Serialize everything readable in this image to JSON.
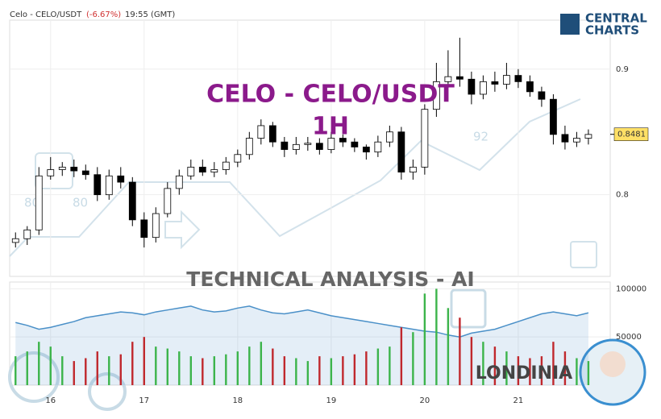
{
  "header": {
    "symbol": "Celo - CELO/USDT",
    "change": "(-6.67%)",
    "time": "19:55 (GMT)"
  },
  "logo": {
    "line1": "CENTRAL",
    "line2": "CHARTS"
  },
  "watermarks": {
    "title": "CELO - CELO/USDT",
    "timeframe": "1H",
    "subtitle": "TECHNICAL  ANALYSIS - AI",
    "brand": "LONDINIA",
    "numbers": [
      "80",
      "80",
      "92"
    ]
  },
  "chart_data": [
    {
      "type": "candlestick",
      "x": [
        -9,
        -6,
        -3,
        0,
        3,
        6,
        9,
        12,
        15,
        18,
        21,
        24,
        27,
        30,
        33,
        36,
        39,
        42,
        45,
        48,
        51,
        54,
        57,
        60,
        63,
        66,
        69,
        72,
        75,
        78,
        81,
        84,
        87,
        90,
        93,
        96,
        99,
        102,
        105,
        108,
        111,
        114,
        117,
        120,
        123,
        126,
        129,
        132,
        135,
        138
      ],
      "open": [
        0.762,
        0.765,
        0.772,
        0.815,
        0.82,
        0.822,
        0.819,
        0.816,
        0.8,
        0.815,
        0.81,
        0.78,
        0.766,
        0.785,
        0.805,
        0.815,
        0.822,
        0.818,
        0.82,
        0.826,
        0.832,
        0.845,
        0.855,
        0.842,
        0.836,
        0.84,
        0.841,
        0.836,
        0.845,
        0.842,
        0.838,
        0.834,
        0.842,
        0.85,
        0.818,
        0.822,
        0.868,
        0.89,
        0.894,
        0.892,
        0.88,
        0.89,
        0.888,
        0.895,
        0.89,
        0.882,
        0.876,
        0.848,
        0.842,
        0.845
      ],
      "high": [
        0.77,
        0.775,
        0.822,
        0.83,
        0.826,
        0.828,
        0.824,
        0.822,
        0.82,
        0.822,
        0.814,
        0.786,
        0.79,
        0.81,
        0.82,
        0.828,
        0.828,
        0.826,
        0.83,
        0.836,
        0.85,
        0.86,
        0.858,
        0.846,
        0.846,
        0.846,
        0.845,
        0.85,
        0.848,
        0.845,
        0.84,
        0.847,
        0.855,
        0.854,
        0.828,
        0.872,
        0.905,
        0.915,
        0.925,
        0.898,
        0.895,
        0.898,
        0.905,
        0.9,
        0.895,
        0.886,
        0.88,
        0.855,
        0.85,
        0.852
      ],
      "low": [
        0.758,
        0.76,
        0.768,
        0.812,
        0.815,
        0.814,
        0.812,
        0.795,
        0.796,
        0.805,
        0.775,
        0.758,
        0.762,
        0.782,
        0.8,
        0.812,
        0.815,
        0.814,
        0.816,
        0.822,
        0.828,
        0.84,
        0.838,
        0.83,
        0.832,
        0.835,
        0.832,
        0.833,
        0.838,
        0.834,
        0.828,
        0.83,
        0.838,
        0.812,
        0.812,
        0.816,
        0.862,
        0.885,
        0.886,
        0.872,
        0.876,
        0.882,
        0.884,
        0.885,
        0.878,
        0.87,
        0.84,
        0.836,
        0.838,
        0.84
      ],
      "close": [
        0.765,
        0.772,
        0.815,
        0.82,
        0.822,
        0.819,
        0.816,
        0.8,
        0.815,
        0.81,
        0.78,
        0.766,
        0.785,
        0.805,
        0.815,
        0.822,
        0.818,
        0.82,
        0.826,
        0.832,
        0.845,
        0.855,
        0.842,
        0.836,
        0.84,
        0.841,
        0.836,
        0.845,
        0.842,
        0.838,
        0.834,
        0.842,
        0.85,
        0.818,
        0.822,
        0.868,
        0.89,
        0.894,
        0.892,
        0.88,
        0.89,
        0.888,
        0.895,
        0.89,
        0.882,
        0.876,
        0.848,
        0.842,
        0.845,
        0.848
      ],
      "up_color": "#ffffff",
      "down_color": "#000000",
      "xlim": [
        -10.5,
        143.6
      ],
      "xticks": [
        {
          "value": 0,
          "label": "16"
        },
        {
          "value": 24,
          "label": "17"
        },
        {
          "value": 48,
          "label": "18"
        },
        {
          "value": 72,
          "label": "19"
        },
        {
          "value": 96,
          "label": "20"
        },
        {
          "value": 120,
          "label": "21"
        }
      ],
      "ylim": [
        0.735,
        0.939
      ],
      "yticks": [
        0.8,
        0.9
      ],
      "last_price": 0.8481,
      "grid": true
    },
    {
      "type": "volume",
      "values": [
        30000,
        35000,
        45000,
        40000,
        30000,
        25000,
        28000,
        35000,
        30000,
        32000,
        45000,
        50000,
        40000,
        38000,
        35000,
        30000,
        28000,
        30000,
        32000,
        35000,
        40000,
        45000,
        38000,
        30000,
        28000,
        25000,
        30000,
        28000,
        30000,
        32000,
        35000,
        38000,
        40000,
        60000,
        55000,
        95000,
        100000,
        80000,
        70000,
        50000,
        45000,
        40000,
        35000,
        30000,
        28000,
        30000,
        45000,
        35000,
        28000,
        25000
      ],
      "area_values": [
        65000,
        62000,
        58000,
        60000,
        63000,
        66000,
        70000,
        72000,
        74000,
        76000,
        75000,
        73000,
        76000,
        78000,
        80000,
        82000,
        78000,
        76000,
        77000,
        80000,
        82000,
        78000,
        75000,
        74000,
        76000,
        78000,
        75000,
        72000,
        70000,
        68000,
        66000,
        64000,
        62000,
        60000,
        58000,
        56000,
        55000,
        52000,
        50000,
        54000,
        56000,
        58000,
        62000,
        66000,
        70000,
        74000,
        76000,
        74000,
        72000,
        75000
      ],
      "up_color": "#3cb44b",
      "down_color": "#c0282d",
      "area_color": "#4a90c8",
      "ylim": [
        0,
        107000
      ],
      "yticks": [
        50000,
        100000
      ]
    }
  ]
}
